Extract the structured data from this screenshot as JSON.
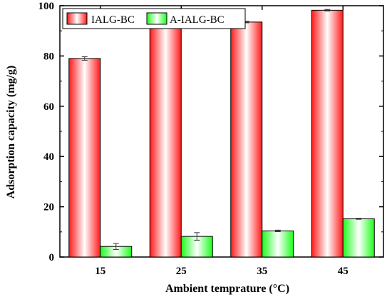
{
  "chart_data": {
    "type": "bar",
    "xlabel": "Ambient temprature (°C)",
    "ylabel": "Adsorption capacity (mg/g)",
    "categories": [
      "15",
      "25",
      "35",
      "45"
    ],
    "ylim": [
      0,
      100
    ],
    "yticks": [
      0,
      20,
      40,
      60,
      80,
      100
    ],
    "legend_position": "top-left",
    "grid": false,
    "series": [
      {
        "name": "IALG-BC",
        "values": [
          79.0,
          91.8,
          93.5,
          98.2
        ],
        "errors": [
          0.7,
          0.3,
          0.3,
          0.3
        ],
        "color": "#ff0000"
      },
      {
        "name": "A-IALG-BC",
        "values": [
          4.2,
          8.2,
          10.4,
          15.2
        ],
        "errors": [
          1.2,
          1.5,
          0.3,
          0.2
        ],
        "color": "#00ff00"
      }
    ]
  }
}
